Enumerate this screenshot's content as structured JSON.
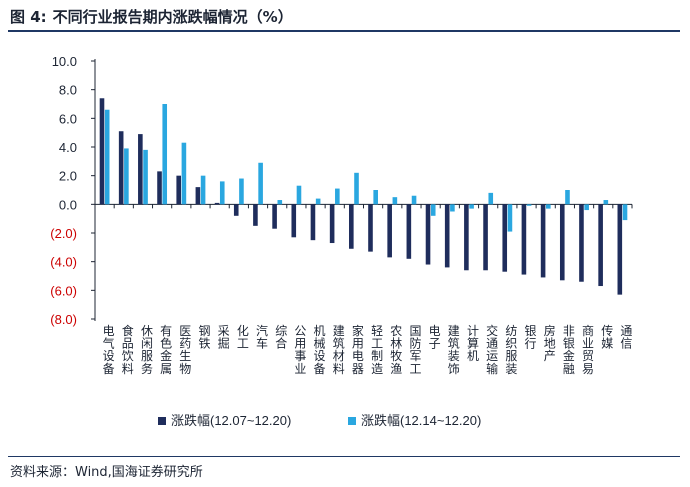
{
  "header": {
    "prefix": "图 4:",
    "title": "不同行业报告期内涨跌幅情况（%）"
  },
  "footer": {
    "source": "资料来源：Wind,国海证券研究所"
  },
  "colors": {
    "series1": "#1f2d5c",
    "series2": "#2aa7e0",
    "negative_tick": "#cc0000",
    "axis": "#1c2433"
  },
  "chart_data": {
    "type": "bar",
    "title": "不同行业报告期内涨跌幅情况（%）",
    "xlabel": "",
    "ylabel": "",
    "ylim": [
      -8,
      10
    ],
    "yticks": [
      10,
      8,
      6,
      4,
      2,
      0,
      -2,
      -4,
      -6,
      -8
    ],
    "ytick_labels": [
      "10.0",
      "8.0",
      "6.0",
      "4.0",
      "2.0",
      "0.0",
      "(2.0)",
      "(4.0)",
      "(6.0)",
      "(8.0)"
    ],
    "grid": false,
    "legend_position": "bottom",
    "categories": [
      "电气设备",
      "食品饮料",
      "休闲服务",
      "有色金属",
      "医药生物",
      "钢铁",
      "采掘",
      "化工",
      "汽车",
      "综合",
      "公用事业",
      "机械设备",
      "建筑材料",
      "家用电器",
      "轻工制造",
      "农林牧渔",
      "国防军工",
      "电子",
      "建筑装饰",
      "计算机",
      "交通运输",
      "纺织服装",
      "银行",
      "房地产",
      "非银金融",
      "商业贸易",
      "传媒",
      "通信"
    ],
    "series": [
      {
        "name": "涨跌幅(12.07~12.20)",
        "values": [
          7.4,
          5.1,
          4.9,
          2.3,
          2.0,
          1.2,
          0.1,
          -0.8,
          -1.5,
          -1.7,
          -2.3,
          -2.5,
          -2.7,
          -3.1,
          -3.3,
          -3.7,
          -3.8,
          -4.2,
          -4.4,
          -4.6,
          -4.6,
          -4.7,
          -4.9,
          -5.1,
          -5.3,
          -5.4,
          -5.7,
          -6.3
        ]
      },
      {
        "name": "涨跌幅(12.14~12.20)",
        "values": [
          6.6,
          3.9,
          3.8,
          7.0,
          4.3,
          2.0,
          1.6,
          1.8,
          2.9,
          0.3,
          1.3,
          0.4,
          1.1,
          2.2,
          1.0,
          0.5,
          0.6,
          -0.8,
          -0.5,
          -0.3,
          0.8,
          -1.9,
          -0.1,
          -0.3,
          1.0,
          -0.4,
          0.3,
          -1.1
        ]
      }
    ]
  }
}
